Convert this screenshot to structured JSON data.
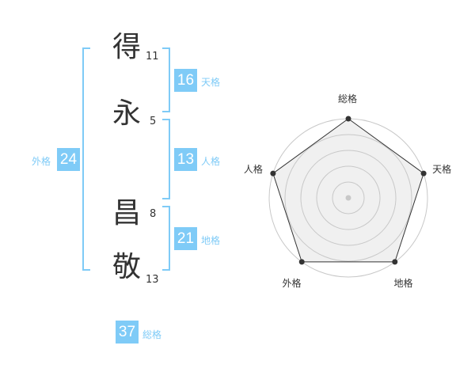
{
  "name_chars": [
    {
      "char": "得",
      "strokes": "11"
    },
    {
      "char": "永",
      "strokes": "5"
    },
    {
      "char": "昌",
      "strokes": "8"
    },
    {
      "char": "敬",
      "strokes": "13"
    }
  ],
  "kaku": {
    "tenkaku": {
      "label": "天格",
      "value": "16"
    },
    "jinkaku": {
      "label": "人格",
      "value": "13"
    },
    "chikaku": {
      "label": "地格",
      "value": "21"
    },
    "gaikaku": {
      "label": "外格",
      "value": "24"
    },
    "soukaku": {
      "label": "総格",
      "value": "37"
    }
  },
  "colors": {
    "accent": "#7fcbf7",
    "radar_fill": "#f0f0f0",
    "radar_stroke": "#333333"
  },
  "chart_data": {
    "type": "radar",
    "axes": [
      "総格",
      "天格",
      "地格",
      "外格",
      "人格"
    ],
    "values": [
      5,
      5,
      5,
      5,
      5
    ],
    "max": 5,
    "levels": 5
  }
}
